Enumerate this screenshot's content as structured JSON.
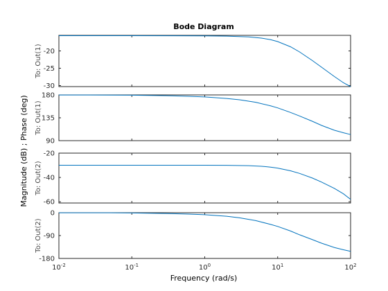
{
  "chart_data": {
    "type": "line",
    "title": "Bode Diagram",
    "xlabel": "Frequency  (rad/s)",
    "ylabel": "Magnitude (dB) ; Phase (deg)",
    "xscale": "log",
    "xlim": [
      0.01,
      100
    ],
    "x_ticks": [
      {
        "base": "10",
        "exp": "-2",
        "value": 0.01
      },
      {
        "base": "10",
        "exp": "-1",
        "value": 0.1
      },
      {
        "base": "10",
        "exp": "0",
        "value": 1
      },
      {
        "base": "10",
        "exp": "1",
        "value": 10
      },
      {
        "base": "10",
        "exp": "2",
        "value": 100
      }
    ],
    "line_color": "#0072bd",
    "grid": false,
    "panels": [
      {
        "panel_label": "To: Out(1)",
        "quantity": "Magnitude (dB)",
        "ylim": [
          -30.3,
          -15.5
        ],
        "yticks": [
          -20,
          -25,
          -30
        ],
        "x": [
          0.01,
          0.1,
          1,
          2,
          4,
          6,
          8,
          10,
          15,
          20,
          30,
          40,
          60,
          80,
          100
        ],
        "y": [
          -15.6,
          -15.6,
          -15.65,
          -15.72,
          -15.95,
          -16.3,
          -16.75,
          -17.3,
          -18.8,
          -20.3,
          -22.8,
          -24.7,
          -27.4,
          -29.2,
          -30.3
        ]
      },
      {
        "panel_label": "To: Out(1)",
        "quantity": "Phase (deg)",
        "ylim": [
          90,
          180
        ],
        "yticks": [
          180,
          135,
          90
        ],
        "x": [
          0.01,
          0.05,
          0.1,
          0.3,
          0.6,
          1,
          2,
          3,
          5,
          8,
          10,
          15,
          20,
          30,
          40,
          60,
          80,
          100
        ],
        "y": [
          179.9,
          179.7,
          179.5,
          178.5,
          177.2,
          176,
          173,
          170.5,
          165.5,
          158.5,
          154.5,
          145.5,
          138.5,
          128,
          120,
          110.5,
          105.5,
          102
        ]
      },
      {
        "panel_label": "To: Out(2)",
        "quantity": "Magnitude (dB)",
        "ylim": [
          -61,
          -20
        ],
        "yticks": [
          -20,
          -40,
          -60
        ],
        "x": [
          0.01,
          0.1,
          1,
          2,
          4,
          6,
          8,
          10,
          15,
          20,
          30,
          40,
          60,
          80,
          100
        ],
        "y": [
          -30,
          -30,
          -30,
          -30.05,
          -30.3,
          -30.8,
          -31.5,
          -32.3,
          -34.5,
          -36.7,
          -40.5,
          -43.8,
          -49,
          -53.5,
          -58
        ]
      },
      {
        "panel_label": "To: Out(2)",
        "quantity": "Phase (deg)",
        "ylim": [
          -180,
          0
        ],
        "yticks": [
          0,
          -90,
          -180
        ],
        "x": [
          0.01,
          0.05,
          0.1,
          0.3,
          0.6,
          1,
          2,
          3,
          5,
          8,
          10,
          15,
          20,
          30,
          40,
          60,
          80,
          100
        ],
        "y": [
          -0.2,
          -0.5,
          -1,
          -3,
          -5.5,
          -8,
          -14,
          -20,
          -31,
          -46,
          -54,
          -72,
          -87,
          -106,
          -120,
          -137,
          -146,
          -152
        ]
      }
    ]
  }
}
